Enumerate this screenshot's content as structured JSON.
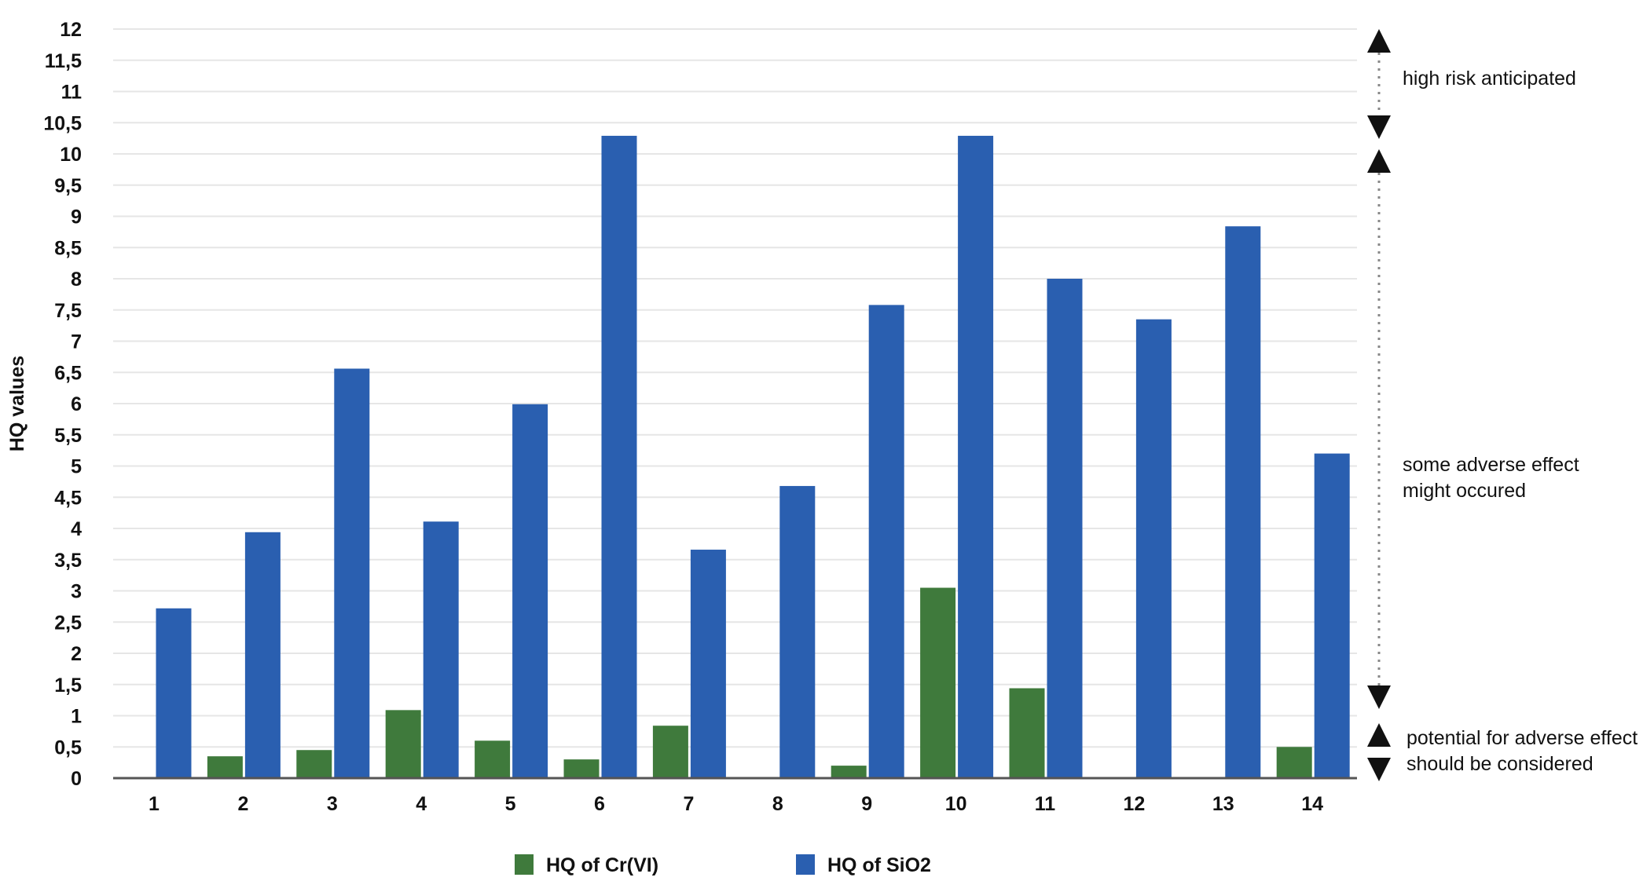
{
  "chart_data": {
    "type": "bar",
    "title": "",
    "xlabel": "",
    "ylabel": "HQ values",
    "ylim": [
      0,
      12
    ],
    "yticks": [
      "0",
      "0,5",
      "1",
      "1,5",
      "2",
      "2,5",
      "3",
      "3,5",
      "4",
      "4,5",
      "5",
      "5,5",
      "6",
      "6,5",
      "7",
      "7,5",
      "8",
      "8,5",
      "9",
      "9,5",
      "10",
      "10,5",
      "11",
      "11,5",
      "12"
    ],
    "grid": true,
    "legend_position": "bottom",
    "categories": [
      "1",
      "2",
      "3",
      "4",
      "5",
      "6",
      "7",
      "8",
      "9",
      "10",
      "11",
      "12",
      "13",
      "14"
    ],
    "series": [
      {
        "name": "HQ of Cr(VI)",
        "color": "#3f7a3c",
        "values": [
          0,
          0.35,
          0.45,
          1.09,
          0.6,
          0.3,
          0.84,
          0,
          0.2,
          3.05,
          1.44,
          0,
          0,
          0.5
        ]
      },
      {
        "name": "HQ of SiO2",
        "color": "#2a5fb0",
        "values": [
          2.72,
          3.94,
          6.56,
          4.11,
          5.99,
          10.29,
          3.66,
          4.68,
          7.58,
          10.29,
          8.0,
          7.35,
          8.84,
          5.2
        ]
      }
    ],
    "annotations": [
      {
        "text": "high risk anticipated",
        "range": [
          10.3,
          12
        ]
      },
      {
        "text_lines": [
          "some adverse effect",
          "might occured"
        ],
        "range": [
          1.3,
          10
        ]
      },
      {
        "text_lines": [
          "potential for adverse effect",
          "should be considered"
        ],
        "range": [
          0,
          1
        ]
      }
    ]
  }
}
